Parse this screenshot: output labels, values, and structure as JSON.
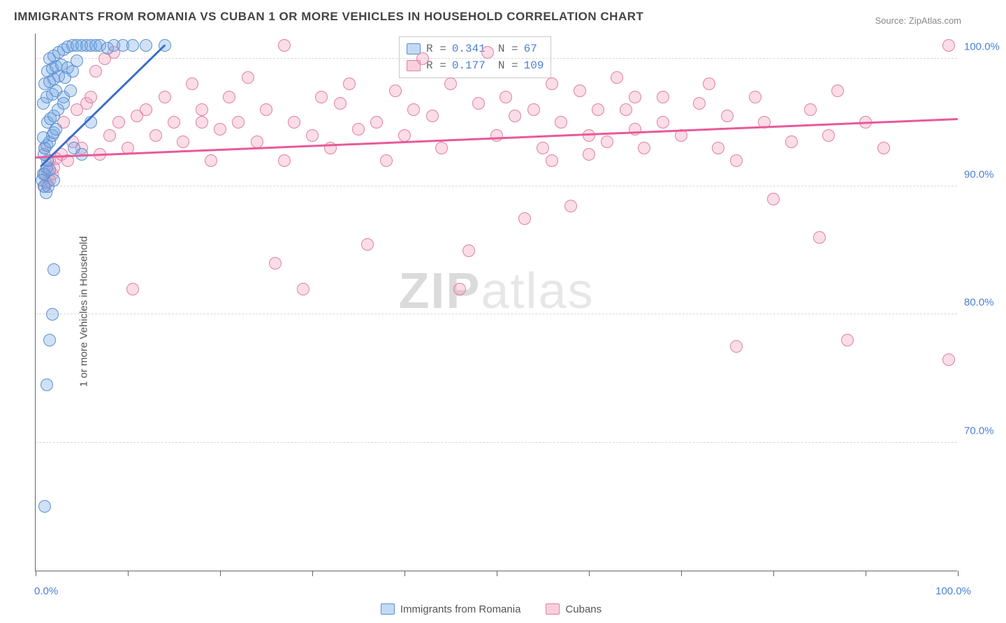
{
  "title": "IMMIGRANTS FROM ROMANIA VS CUBAN 1 OR MORE VEHICLES IN HOUSEHOLD CORRELATION CHART",
  "source": "Source: ZipAtlas.com",
  "watermark_zip": "ZIP",
  "watermark_atlas": "atlas",
  "chart": {
    "type": "scatter",
    "ylabel": "1 or more Vehicles in Household",
    "xlim": [
      0,
      100
    ],
    "ylim": [
      60,
      102
    ],
    "background_color": "#ffffff",
    "grid_color": "#d8d8d8",
    "axis_color": "#666666",
    "tick_label_color": "#4a7fd8",
    "tick_fontsize": 15,
    "label_fontsize": 15,
    "marker_size": 18,
    "y_gridlines": [
      70,
      80,
      90,
      100
    ],
    "y_tick_labels": [
      "70.0%",
      "80.0%",
      "90.0%",
      "100.0%"
    ],
    "x_tick_positions": [
      0,
      10,
      20,
      30,
      40,
      50,
      60,
      70,
      80,
      90,
      100
    ],
    "x_tick_label_left": "0.0%",
    "x_tick_label_right": "100.0%"
  },
  "legend_top": {
    "rows": [
      {
        "swatch": "blue",
        "r_label": "R =",
        "r_value": "0.341",
        "n_label": "N =",
        "n_value": " 67"
      },
      {
        "swatch": "pink",
        "r_label": "R =",
        "r_value": "0.177",
        "n_label": "N =",
        "n_value": "109"
      }
    ]
  },
  "legend_bottom": {
    "items": [
      {
        "swatch": "blue",
        "label": "Immigrants from Romania"
      },
      {
        "swatch": "pink",
        "label": "Cubans"
      }
    ]
  },
  "series": {
    "romania": {
      "color_fill": "rgba(120,170,230,0.35)",
      "color_stroke": "#5a8fd0",
      "trend": {
        "x1": 0.5,
        "y1": 91.5,
        "x2": 14,
        "y2": 101,
        "color": "#3b6fc8",
        "width": 2.5
      },
      "points": [
        [
          1,
          65
        ],
        [
          1.2,
          74.5
        ],
        [
          1.5,
          78
        ],
        [
          1.8,
          80
        ],
        [
          2,
          83.5
        ],
        [
          0.8,
          91
        ],
        [
          1,
          91
        ],
        [
          1.2,
          91.5
        ],
        [
          1.5,
          91.3
        ],
        [
          1.3,
          92
        ],
        [
          0.9,
          92.5
        ],
        [
          1,
          93
        ],
        [
          1.2,
          93.2
        ],
        [
          1.5,
          93.5
        ],
        [
          0.8,
          93.8
        ],
        [
          1.8,
          94
        ],
        [
          2,
          94.2
        ],
        [
          2.2,
          94.5
        ],
        [
          1.3,
          95
        ],
        [
          1.6,
          95.3
        ],
        [
          2,
          95.5
        ],
        [
          2.4,
          96
        ],
        [
          0.8,
          96.5
        ],
        [
          1.2,
          97
        ],
        [
          1.8,
          97.2
        ],
        [
          2.2,
          97.5
        ],
        [
          3,
          97
        ],
        [
          1,
          98
        ],
        [
          1.5,
          98.2
        ],
        [
          2,
          98.4
        ],
        [
          2.5,
          98.6
        ],
        [
          3.2,
          98.5
        ],
        [
          1.3,
          99
        ],
        [
          1.8,
          99.2
        ],
        [
          2.2,
          99.4
        ],
        [
          2.8,
          99.5
        ],
        [
          3.5,
          99.3
        ],
        [
          4,
          99
        ],
        [
          4.5,
          99.8
        ],
        [
          1.5,
          100
        ],
        [
          2,
          100.2
        ],
        [
          2.5,
          100.5
        ],
        [
          3,
          100.7
        ],
        [
          3.5,
          100.9
        ],
        [
          4,
          101
        ],
        [
          4.5,
          101
        ],
        [
          5,
          101
        ],
        [
          5.5,
          101
        ],
        [
          6,
          101
        ],
        [
          6.5,
          101
        ],
        [
          7,
          101
        ],
        [
          7.8,
          100.8
        ],
        [
          8.5,
          101
        ],
        [
          9.5,
          101
        ],
        [
          10.5,
          101
        ],
        [
          12,
          101
        ],
        [
          14,
          101
        ],
        [
          4.2,
          93
        ],
        [
          5,
          92.5
        ],
        [
          6,
          95
        ],
        [
          0.7,
          90.5
        ],
        [
          0.9,
          90
        ],
        [
          1.1,
          89.5
        ],
        [
          1.4,
          90
        ],
        [
          2,
          90.5
        ],
        [
          3,
          96.5
        ],
        [
          3.8,
          97.5
        ]
      ]
    },
    "cubans": {
      "color_fill": "rgba(240,150,180,0.32)",
      "color_stroke": "#e07fa5",
      "trend": {
        "x1": 0,
        "y1": 92.2,
        "x2": 100,
        "y2": 95.2,
        "color": "#e85a9a",
        "width": 2.5
      },
      "points": [
        [
          1,
          90
        ],
        [
          1.2,
          90.3
        ],
        [
          1.5,
          90.5
        ],
        [
          1,
          91
        ],
        [
          1.3,
          91.2
        ],
        [
          1.8,
          91
        ],
        [
          2,
          91.5
        ],
        [
          1.5,
          92
        ],
        [
          2.2,
          92.2
        ],
        [
          2.8,
          92.5
        ],
        [
          1,
          93
        ],
        [
          3.5,
          92
        ],
        [
          4,
          93.5
        ],
        [
          5,
          93
        ],
        [
          3,
          95
        ],
        [
          4.5,
          96
        ],
        [
          5.5,
          96.5
        ],
        [
          6,
          97
        ],
        [
          7,
          92.5
        ],
        [
          8,
          94
        ],
        [
          9,
          95
        ],
        [
          6.5,
          99
        ],
        [
          7.5,
          100
        ],
        [
          8.5,
          100.5
        ],
        [
          10,
          93
        ],
        [
          11,
          95.5
        ],
        [
          12,
          96
        ],
        [
          10.5,
          82
        ],
        [
          13,
          94
        ],
        [
          14,
          97
        ],
        [
          15,
          95
        ],
        [
          16,
          93.5
        ],
        [
          17,
          98
        ],
        [
          18,
          96
        ],
        [
          18,
          95
        ],
        [
          19,
          92
        ],
        [
          20,
          94.5
        ],
        [
          21,
          97
        ],
        [
          22,
          95
        ],
        [
          23,
          98.5
        ],
        [
          24,
          93.5
        ],
        [
          25,
          96
        ],
        [
          26,
          84
        ],
        [
          27,
          92
        ],
        [
          27,
          101
        ],
        [
          28,
          95
        ],
        [
          29,
          82
        ],
        [
          30,
          94
        ],
        [
          31,
          97
        ],
        [
          32,
          93
        ],
        [
          33,
          96.5
        ],
        [
          34,
          98
        ],
        [
          35,
          94.5
        ],
        [
          36,
          85.5
        ],
        [
          37,
          95
        ],
        [
          38,
          92
        ],
        [
          39,
          97.5
        ],
        [
          40,
          94
        ],
        [
          41,
          96
        ],
        [
          42,
          100
        ],
        [
          43,
          95.5
        ],
        [
          44,
          93
        ],
        [
          45,
          98
        ],
        [
          46,
          82
        ],
        [
          47,
          85
        ],
        [
          48,
          96.5
        ],
        [
          49,
          100.5
        ],
        [
          50,
          94
        ],
        [
          51,
          97
        ],
        [
          52,
          95.5
        ],
        [
          53,
          87.5
        ],
        [
          54,
          96
        ],
        [
          55,
          93
        ],
        [
          56,
          98
        ],
        [
          56,
          92
        ],
        [
          57,
          95
        ],
        [
          58,
          88.5
        ],
        [
          59,
          97.5
        ],
        [
          60,
          94
        ],
        [
          60,
          92.5
        ],
        [
          61,
          96
        ],
        [
          62,
          93.5
        ],
        [
          63,
          98.5
        ],
        [
          64,
          96
        ],
        [
          65,
          94.5
        ],
        [
          65,
          97
        ],
        [
          66,
          93
        ],
        [
          68,
          97
        ],
        [
          68,
          95
        ],
        [
          70,
          94
        ],
        [
          72,
          96.5
        ],
        [
          73,
          98
        ],
        [
          74,
          93
        ],
        [
          75,
          95.5
        ],
        [
          76,
          92
        ],
        [
          76,
          77.5
        ],
        [
          78,
          97
        ],
        [
          79,
          95
        ],
        [
          80,
          89
        ],
        [
          82,
          93.5
        ],
        [
          84,
          96
        ],
        [
          85,
          86
        ],
        [
          86,
          94
        ],
        [
          87,
          97.5
        ],
        [
          88,
          78
        ],
        [
          90,
          95
        ],
        [
          92,
          93
        ],
        [
          99,
          76.5
        ],
        [
          99,
          101
        ]
      ]
    }
  }
}
